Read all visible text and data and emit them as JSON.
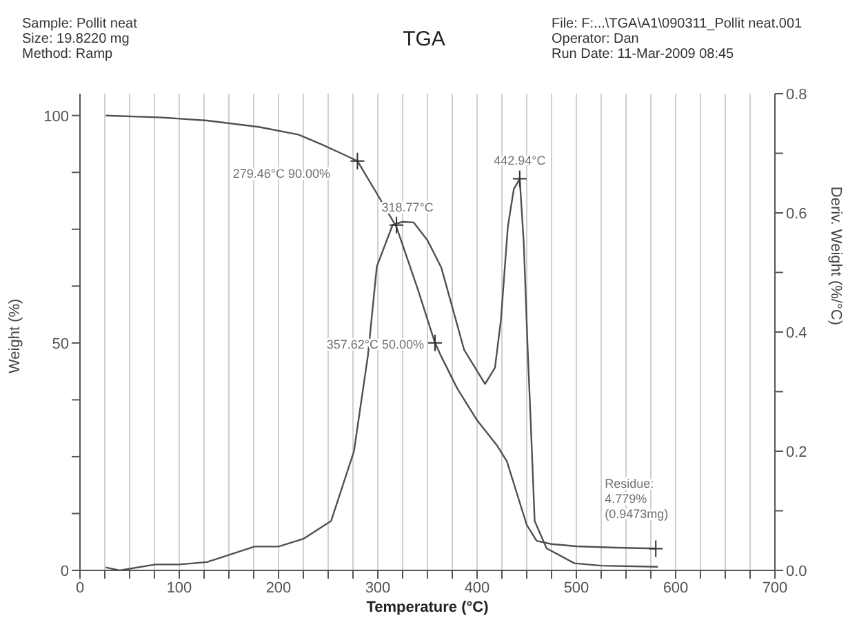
{
  "chart_data": {
    "type": "line",
    "title": "TGA",
    "xlabel": "Temperature (°C)",
    "ylabel": "Weight (%)",
    "y2label": "Deriv. Weight (%/°C)",
    "annotations": [
      "Sample: Pollit neat",
      "Size:  19.8220 mg",
      "Method: Ramp",
      "File: F:...\\TGA\\A1\\090311_Pollit neat.001",
      "Operator: Dan",
      "Run Date: 11-Mar-2009 08:45",
      {
        "text": "279.46°C 90.00%",
        "x": 279.46,
        "y": 90
      },
      {
        "text": "318.77°C",
        "x": 318.77,
        "y": 75.9
      },
      {
        "text": "442.94°C",
        "x": 442.94,
        "y": 86.1
      },
      {
        "text": "357.62°C 50.00%",
        "x": 357.62,
        "y": 50
      },
      {
        "text": "Residue:\n4.779%\n(0.9473mg)",
        "x": 580,
        "y": 4.779
      }
    ],
    "series": [
      {
        "color": "#505050",
        "x": [
          26,
          80,
          128,
          180,
          220,
          243,
          260,
          279.46,
          300,
          318.77,
          340,
          357.62,
          364,
          380,
          400,
          420,
          430,
          440,
          450,
          460,
          475,
          500,
          540,
          580
        ],
        "values": [
          100,
          99.6,
          98.9,
          97.5,
          95.8,
          93.7,
          92,
          90,
          82.5,
          75.5,
          62,
          50,
          47,
          40,
          33,
          27.5,
          24,
          17,
          10,
          6.5,
          5.8,
          5.3,
          5,
          4.8
        ]
      },
      {
        "color": "#505050",
        "axis": "y2",
        "x": [
          26,
          40,
          76,
          100,
          128,
          176,
          200,
          225,
          253,
          276,
          290,
          299,
          315,
          325,
          336,
          350,
          364,
          387,
          408,
          418,
          424,
          431,
          437,
          442.94,
          447,
          451,
          454,
          458,
          470,
          498,
          525,
          582
        ],
        "values": [
          0.005,
          0,
          0.01,
          0.01,
          0.014,
          0.04,
          0.04,
          0.053,
          0.083,
          0.2,
          0.36,
          0.51,
          0.58,
          0.585,
          0.584,
          0.554,
          0.508,
          0.37,
          0.313,
          0.34,
          0.42,
          0.577,
          0.64,
          0.657,
          0.55,
          0.37,
          0.25,
          0.083,
          0.037,
          0.012,
          0.008,
          0.006
        ]
      }
    ],
    "xlim": [
      0,
      700
    ],
    "xticks": [
      0,
      {
        "value": 25,
        "label": null
      },
      100,
      {
        "value": 50,
        "label": null
      },
      {
        "value": 75,
        "label": null
      },
      {
        "value": 125,
        "label": null
      },
      {
        "value": 150,
        "label": null
      },
      {
        "value": 175,
        "label": null
      },
      200,
      {
        "value": 225,
        "label": null
      },
      {
        "value": 250,
        "label": null
      },
      {
        "value": 275,
        "label": null
      },
      300,
      {
        "value": 325,
        "label": null
      },
      {
        "value": 350,
        "label": null
      },
      {
        "value": 375,
        "label": null
      },
      400,
      {
        "value": 425,
        "label": null
      },
      {
        "value": 450,
        "label": null
      },
      {
        "value": 475,
        "label": null
      },
      500,
      {
        "value": 525,
        "label": null
      },
      {
        "value": 550,
        "label": null
      },
      {
        "value": 575,
        "label": null
      },
      600,
      {
        "value": 625,
        "label": null
      },
      {
        "value": 650,
        "label": null
      },
      {
        "value": 675,
        "label": null
      },
      700
    ],
    "ylim": [
      0,
      104.8
    ],
    "yticks": [
      0,
      {
        "value": 12.5,
        "label": null
      },
      {
        "value": 25,
        "label": null
      },
      {
        "value": 37.5,
        "label": null
      },
      50,
      {
        "value": 62.5,
        "label": null
      },
      {
        "value": 75,
        "label": null
      },
      {
        "value": 87.5,
        "label": null
      },
      100
    ],
    "y2lim": [
      0,
      0.8
    ],
    "y2ticks": [
      {
        "value": 0,
        "label": "0.0"
      },
      {
        "value": 0.1,
        "label": null
      },
      {
        "value": 0.2,
        "label": "0.2"
      },
      {
        "value": 0.3,
        "label": null
      },
      {
        "value": 0.4,
        "label": "0.4"
      },
      {
        "value": 0.5,
        "label": null
      },
      {
        "value": 0.6,
        "label": "0.6"
      },
      {
        "value": 0.7,
        "label": null
      },
      {
        "value": 0.8,
        "label": "0.8"
      }
    ],
    "grid": true,
    "legend": false,
    "marker": "none",
    "line_style": "solid"
  }
}
